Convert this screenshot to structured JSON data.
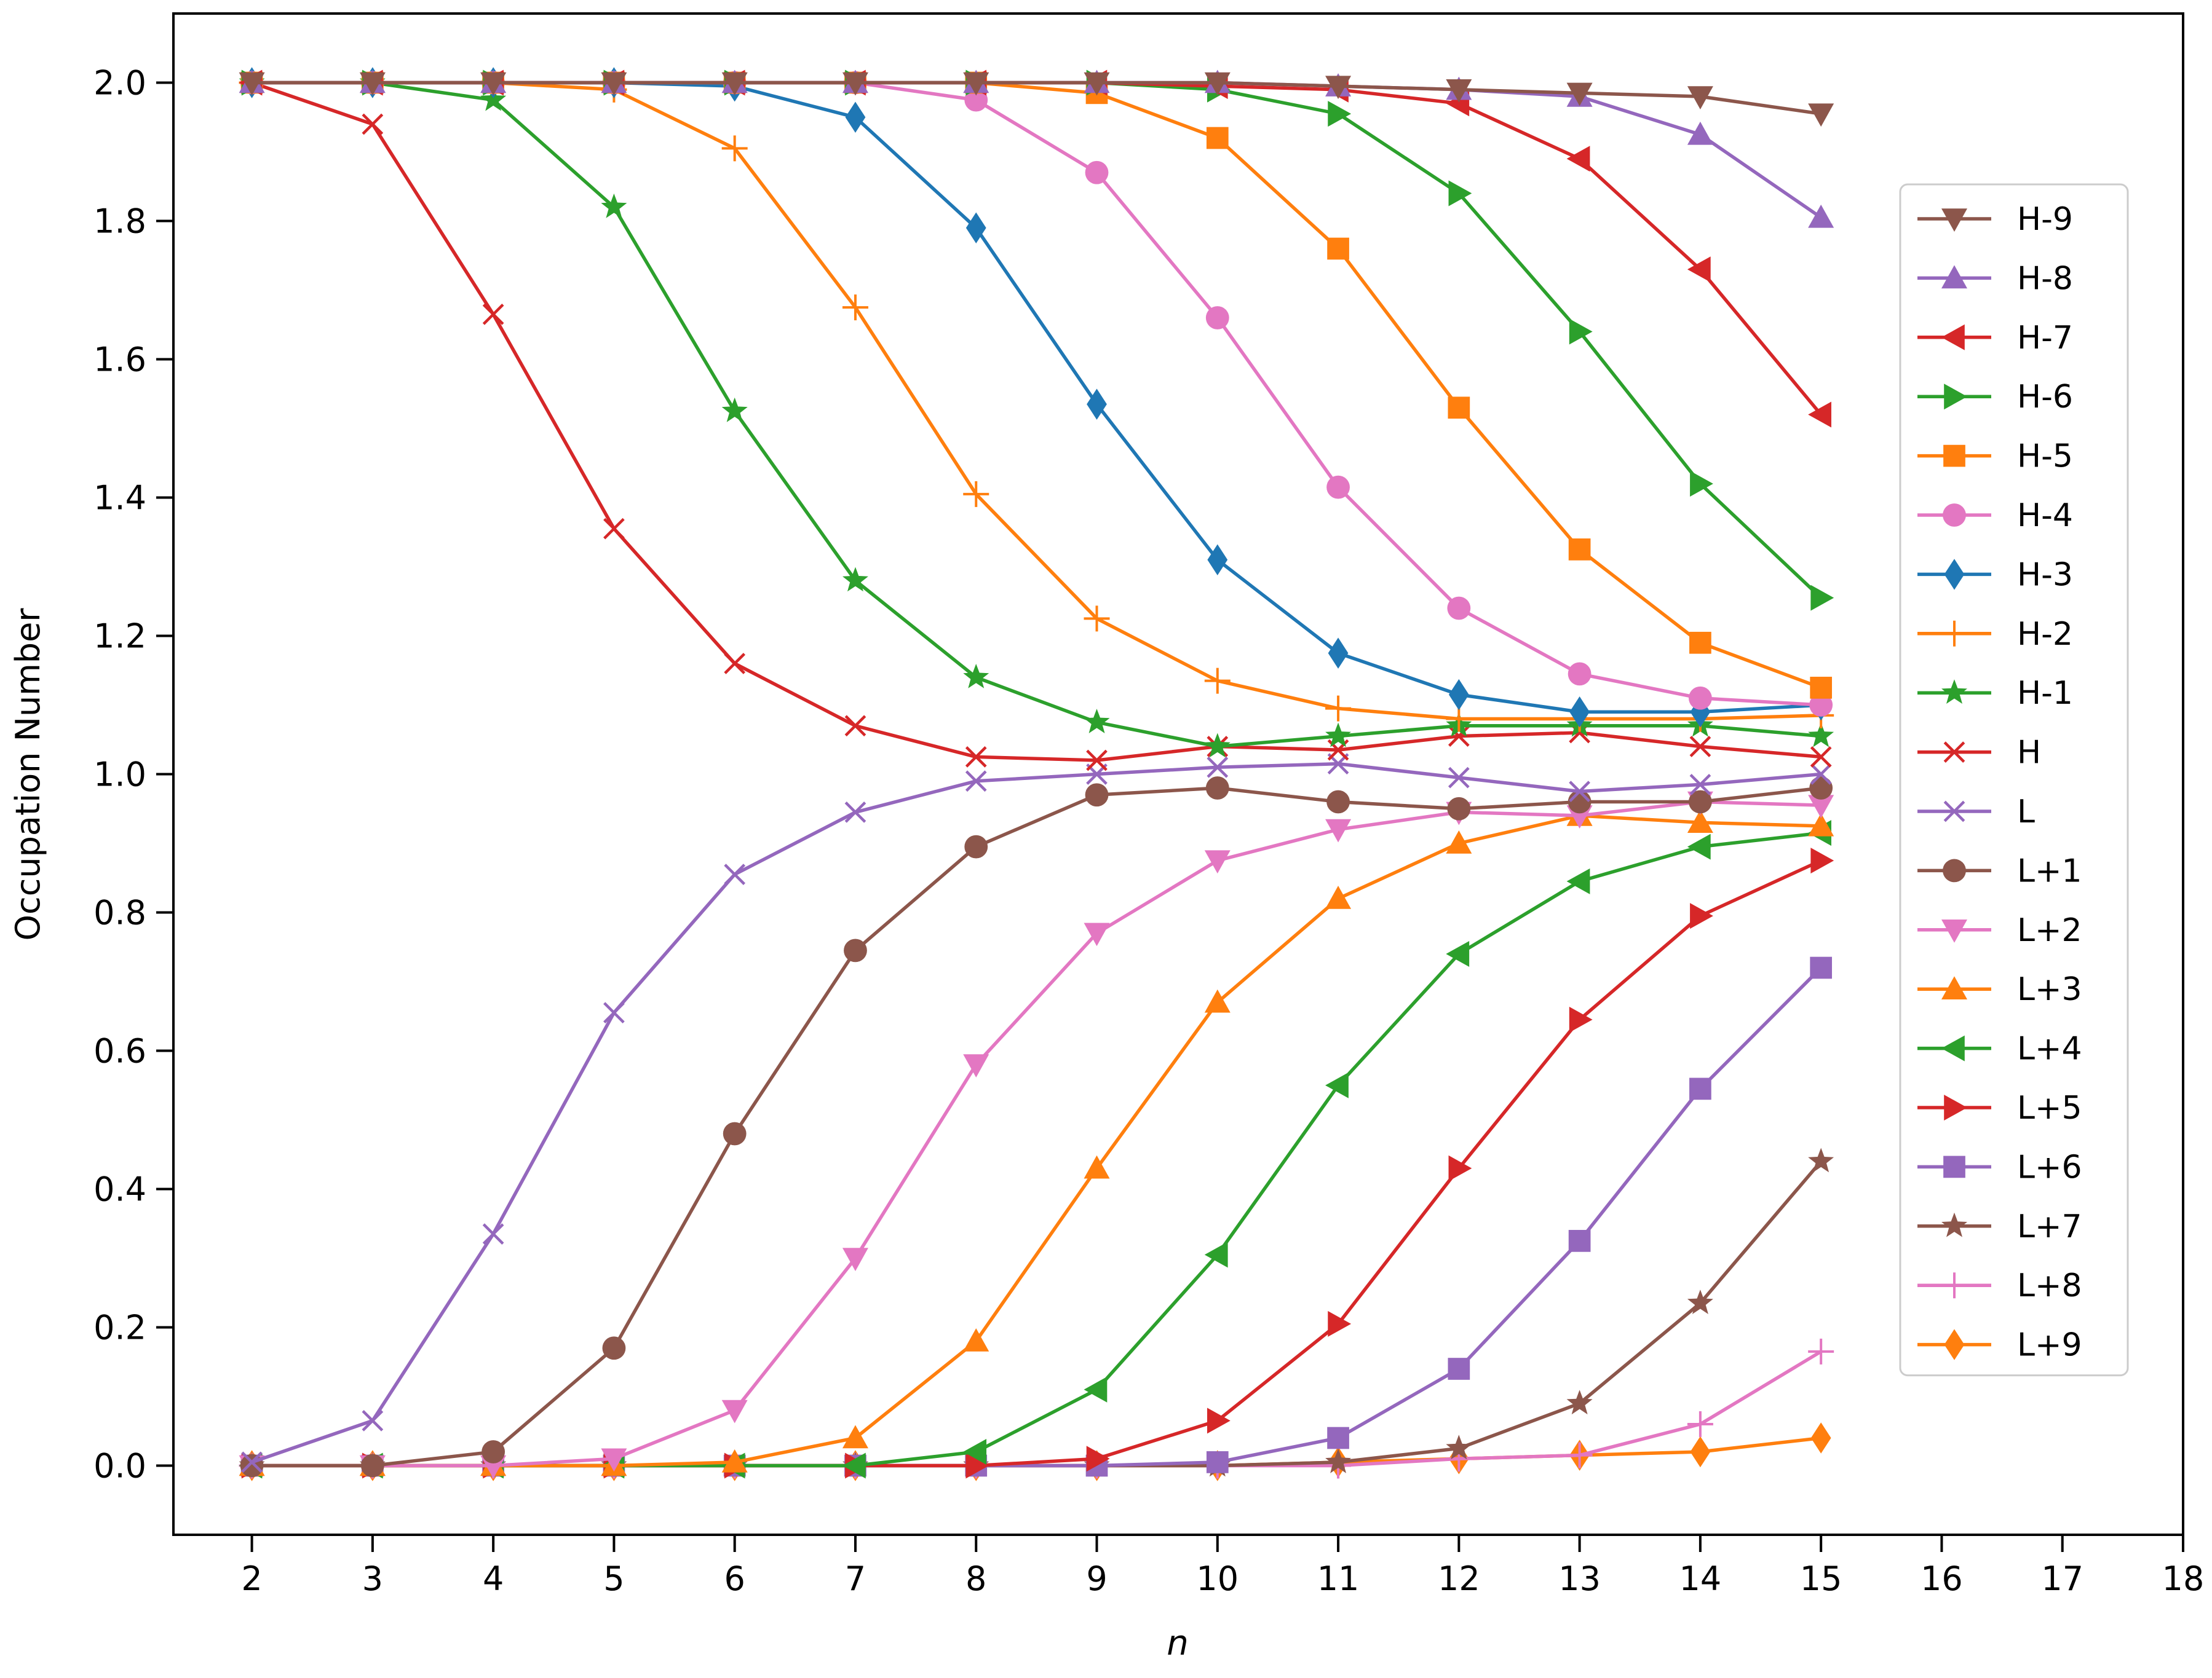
{
  "chart_data": {
    "type": "line",
    "title": "",
    "xlabel": "n",
    "ylabel": "Occupation Number",
    "xlim": [
      1.35,
      18
    ],
    "ylim": [
      -0.1,
      2.1
    ],
    "xticks": [
      2,
      3,
      4,
      5,
      6,
      7,
      8,
      9,
      10,
      11,
      12,
      13,
      14,
      15,
      16,
      17,
      18
    ],
    "xtick_labels": [
      "2",
      "3",
      "4",
      "5",
      "6",
      "7",
      "8",
      "9",
      "10",
      "11",
      "12",
      "13",
      "14",
      "15",
      "16",
      "17",
      "18"
    ],
    "yticks": [
      0.0,
      0.2,
      0.4,
      0.6,
      0.8,
      1.0,
      1.2,
      1.4,
      1.6,
      1.8,
      2.0
    ],
    "ytick_labels": [
      "0.0",
      "0.2",
      "0.4",
      "0.6",
      "0.8",
      "1.0",
      "1.2",
      "1.4",
      "1.6",
      "1.8",
      "2.0"
    ],
    "grid": false,
    "legend_position": "right",
    "x": [
      2,
      3,
      4,
      5,
      6,
      7,
      8,
      9,
      10,
      11,
      12,
      13,
      14,
      15
    ],
    "series": [
      {
        "name": "H-9",
        "color": "#8c564b",
        "marker": "triangle-down",
        "values": [
          2.0,
          2.0,
          2.0,
          2.0,
          2.0,
          2.0,
          2.0,
          2.0,
          2.0,
          1.995,
          1.99,
          1.985,
          1.98,
          1.955
        ]
      },
      {
        "name": "H-8",
        "color": "#9467bd",
        "marker": "triangle-up",
        "values": [
          2.0,
          2.0,
          2.0,
          2.0,
          2.0,
          2.0,
          2.0,
          2.0,
          2.0,
          1.995,
          1.99,
          1.98,
          1.925,
          1.805
        ]
      },
      {
        "name": "H-7",
        "color": "#d62728",
        "marker": "triangle-left",
        "values": [
          2.0,
          2.0,
          2.0,
          2.0,
          2.0,
          2.0,
          2.0,
          2.0,
          1.995,
          1.99,
          1.97,
          1.89,
          1.73,
          1.52
        ]
      },
      {
        "name": "H-6",
        "color": "#2ca02c",
        "marker": "triangle-right",
        "values": [
          2.0,
          2.0,
          2.0,
          2.0,
          2.0,
          2.0,
          2.0,
          2.0,
          1.99,
          1.955,
          1.84,
          1.64,
          1.42,
          1.255
        ]
      },
      {
        "name": "H-5",
        "color": "#ff7f0e",
        "marker": "square",
        "values": [
          2.0,
          2.0,
          2.0,
          2.0,
          2.0,
          2.0,
          2.0,
          1.985,
          1.92,
          1.76,
          1.53,
          1.325,
          1.19,
          1.125
        ]
      },
      {
        "name": "H-4",
        "color": "#e377c2",
        "marker": "circle",
        "values": [
          2.0,
          2.0,
          2.0,
          2.0,
          2.0,
          2.0,
          1.975,
          1.87,
          1.66,
          1.415,
          1.24,
          1.145,
          1.11,
          1.1
        ]
      },
      {
        "name": "H-3",
        "color": "#1f77b4",
        "marker": "diamond",
        "values": [
          2.0,
          2.0,
          2.0,
          2.0,
          1.995,
          1.95,
          1.79,
          1.535,
          1.31,
          1.175,
          1.115,
          1.09,
          1.09,
          1.1
        ]
      },
      {
        "name": "H-2",
        "color": "#ff7f0e",
        "marker": "plus",
        "values": [
          2.0,
          2.0,
          2.0,
          1.99,
          1.905,
          1.675,
          1.405,
          1.225,
          1.135,
          1.095,
          1.08,
          1.08,
          1.08,
          1.085
        ]
      },
      {
        "name": "H-1",
        "color": "#2ca02c",
        "marker": "star",
        "values": [
          2.0,
          2.0,
          1.975,
          1.82,
          1.525,
          1.28,
          1.14,
          1.075,
          1.04,
          1.055,
          1.07,
          1.07,
          1.07,
          1.055
        ]
      },
      {
        "name": "H",
        "color": "#d62728",
        "marker": "x",
        "values": [
          2.0,
          1.94,
          1.665,
          1.355,
          1.16,
          1.07,
          1.025,
          1.02,
          1.04,
          1.035,
          1.055,
          1.06,
          1.04,
          1.025
        ]
      },
      {
        "name": "L",
        "color": "#9467bd",
        "marker": "x",
        "values": [
          0.005,
          0.065,
          0.335,
          0.655,
          0.855,
          0.945,
          0.99,
          1.0,
          1.01,
          1.015,
          0.995,
          0.975,
          0.985,
          1.0
        ]
      },
      {
        "name": "L+1",
        "color": "#8c564b",
        "marker": "circle",
        "values": [
          0.0,
          0.0,
          0.02,
          0.17,
          0.48,
          0.745,
          0.895,
          0.97,
          0.98,
          0.96,
          0.95,
          0.96,
          0.96,
          0.98
        ]
      },
      {
        "name": "L+2",
        "color": "#e377c2",
        "marker": "triangle-down",
        "values": [
          0.0,
          0.0,
          0.0,
          0.01,
          0.08,
          0.3,
          0.58,
          0.77,
          0.875,
          0.92,
          0.945,
          0.94,
          0.96,
          0.955
        ]
      },
      {
        "name": "L+3",
        "color": "#ff7f0e",
        "marker": "triangle-up",
        "values": [
          0.0,
          0.0,
          0.0,
          0.0,
          0.005,
          0.04,
          0.18,
          0.43,
          0.67,
          0.82,
          0.9,
          0.94,
          0.93,
          0.925
        ]
      },
      {
        "name": "L+4",
        "color": "#2ca02c",
        "marker": "triangle-left",
        "values": [
          0.0,
          0.0,
          0.0,
          0.0,
          0.0,
          0.0,
          0.02,
          0.11,
          0.305,
          0.55,
          0.74,
          0.845,
          0.895,
          0.915
        ]
      },
      {
        "name": "L+5",
        "color": "#d62728",
        "marker": "triangle-right",
        "values": [
          0.0,
          0.0,
          0.0,
          0.0,
          0.0,
          0.0,
          0.0,
          0.01,
          0.065,
          0.205,
          0.43,
          0.645,
          0.795,
          0.875
        ]
      },
      {
        "name": "L+6",
        "color": "#9467bd",
        "marker": "square",
        "values": [
          0.0,
          0.0,
          0.0,
          0.0,
          0.0,
          0.0,
          0.0,
          0.0,
          0.005,
          0.04,
          0.14,
          0.325,
          0.545,
          0.72
        ]
      },
      {
        "name": "L+7",
        "color": "#8c564b",
        "marker": "star",
        "values": [
          0.0,
          0.0,
          0.0,
          0.0,
          0.0,
          0.0,
          0.0,
          0.0,
          0.0,
          0.005,
          0.025,
          0.09,
          0.235,
          0.44
        ]
      },
      {
        "name": "L+8",
        "color": "#e377c2",
        "marker": "plus",
        "values": [
          0.0,
          0.0,
          0.0,
          0.0,
          0.0,
          0.0,
          0.0,
          0.0,
          0.0,
          0.0,
          0.01,
          0.015,
          0.06,
          0.165
        ]
      },
      {
        "name": "L+9",
        "color": "#ff7f0e",
        "marker": "diamond",
        "values": [
          0.0,
          0.0,
          0.0,
          0.0,
          0.0,
          0.0,
          0.0,
          0.0,
          0.0,
          0.005,
          0.01,
          0.015,
          0.02,
          0.04
        ]
      }
    ]
  }
}
